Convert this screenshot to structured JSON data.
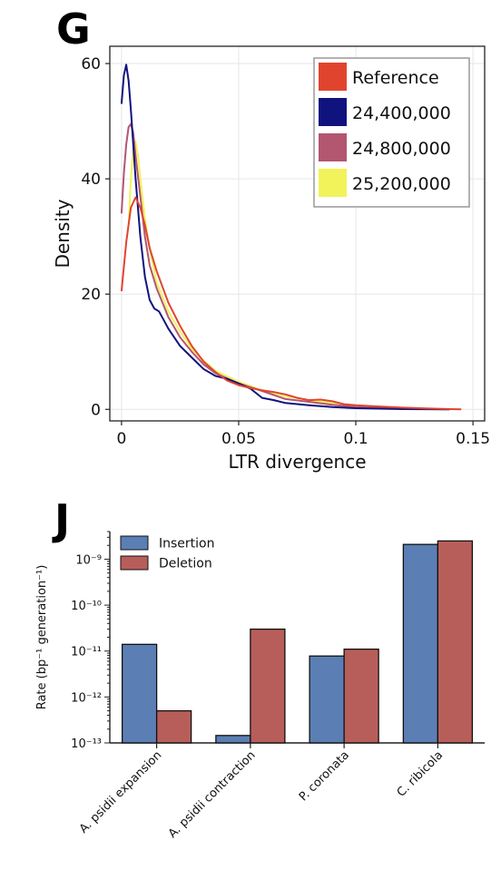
{
  "chart_data": [
    {
      "panel_label": "G",
      "type": "line",
      "xlabel": "LTR divergence",
      "ylabel": "Density",
      "xlim": [
        -0.005,
        0.155
      ],
      "ylim": [
        -2,
        63
      ],
      "x_ticks": [
        "0",
        "0.05",
        "0.1",
        "0.15"
      ],
      "x_tick_values": [
        0,
        0.05,
        0.1,
        0.15
      ],
      "y_ticks": [
        "0",
        "20",
        "40",
        "60"
      ],
      "y_tick_values": [
        0,
        20,
        40,
        60
      ],
      "grid": true,
      "legend_position": "top-right",
      "series": [
        {
          "name": "Reference",
          "color": "#e0442e",
          "x": [
            0,
            0.002,
            0.004,
            0.006,
            0.008,
            0.01,
            0.012,
            0.015,
            0.02,
            0.025,
            0.03,
            0.035,
            0.04,
            0.045,
            0.05,
            0.055,
            0.06,
            0.065,
            0.07,
            0.075,
            0.08,
            0.085,
            0.09,
            0.095,
            0.1,
            0.11,
            0.12,
            0.13,
            0.14,
            0.145
          ],
          "y": [
            20.5,
            29,
            35,
            36.8,
            35,
            32,
            28,
            24,
            18.5,
            14.5,
            11,
            8.3,
            6.5,
            5,
            4.2,
            3.7,
            3.3,
            3,
            2.6,
            2,
            1.6,
            1.7,
            1.4,
            0.9,
            0.7,
            0.5,
            0.3,
            0.15,
            0.05,
            0
          ]
        },
        {
          "name": "24,400,000",
          "color": "#10137e",
          "x": [
            0,
            0.001,
            0.002,
            0.003,
            0.004,
            0.006,
            0.008,
            0.01,
            0.012,
            0.014,
            0.016,
            0.018,
            0.02,
            0.025,
            0.03,
            0.035,
            0.04,
            0.045,
            0.05,
            0.055,
            0.06,
            0.065,
            0.07,
            0.08,
            0.09,
            0.1,
            0.12,
            0.14
          ],
          "y": [
            53,
            58,
            59.8,
            57,
            52,
            40,
            30,
            23,
            19,
            17.5,
            17,
            15.5,
            14,
            11,
            9,
            7,
            5.8,
            5.3,
            4.5,
            3.6,
            2,
            1.6,
            1.1,
            0.7,
            0.4,
            0.2,
            0.05,
            0
          ]
        },
        {
          "name": "24,800,000",
          "color": "#b3566f",
          "x": [
            0,
            0.001,
            0.002,
            0.003,
            0.004,
            0.005,
            0.006,
            0.008,
            0.01,
            0.012,
            0.015,
            0.02,
            0.025,
            0.03,
            0.035,
            0.04,
            0.05,
            0.06,
            0.07,
            0.08,
            0.09,
            0.1,
            0.12,
            0.14
          ],
          "y": [
            34,
            41,
            46,
            49,
            49.5,
            48,
            44,
            37,
            30,
            25,
            21,
            16,
            12.5,
            10,
            7.8,
            6.3,
            4.5,
            3.2,
            1.8,
            1.3,
            0.8,
            0.4,
            0.1,
            0
          ]
        },
        {
          "name": "25,200,000",
          "color": "#f2f25a",
          "x": [
            0.003,
            0.004,
            0.005,
            0.006,
            0.007,
            0.008,
            0.01,
            0.012,
            0.015,
            0.02,
            0.025,
            0.03,
            0.035,
            0.04,
            0.05,
            0.06,
            0.07,
            0.08,
            0.09,
            0.1,
            0.12,
            0.14
          ],
          "y": [
            32,
            40,
            45,
            46.5,
            44,
            40,
            33,
            28,
            22,
            17,
            13.5,
            10.5,
            8.5,
            6.7,
            4.8,
            3.3,
            2.3,
            1.6,
            1.1,
            0.6,
            0.2,
            0
          ]
        }
      ]
    },
    {
      "panel_label": "J",
      "type": "bar",
      "ylabel": "Rate (bp⁻¹ generation⁻¹)",
      "yscale": "log",
      "ylim": [
        1e-13,
        4e-09
      ],
      "y_ticks": [
        "10⁻¹³",
        "10⁻¹²",
        "10⁻¹¹",
        "10⁻¹⁰",
        "10⁻⁹"
      ],
      "y_tick_values": [
        1e-13,
        1e-12,
        1e-11,
        1e-10,
        1e-09
      ],
      "categories": [
        "A. psidii expansion",
        "A. psidii contraction",
        "P. coronata",
        "C. ribicola"
      ],
      "legend_position": "top-left",
      "grid": false,
      "series": [
        {
          "name": "Insertion",
          "color": "#5b7fb4",
          "values": [
            1.4e-11,
            1.45e-13,
            7.8e-12,
            2.1e-09
          ]
        },
        {
          "name": "Deletion",
          "color": "#b85e5a",
          "values": [
            5e-13,
            3e-11,
            1.1e-11,
            2.5e-09
          ]
        }
      ]
    }
  ]
}
